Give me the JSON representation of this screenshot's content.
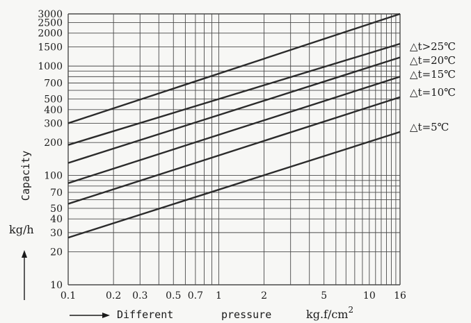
{
  "chart_data": {
    "type": "line",
    "scale": {
      "x": "log",
      "y": "log"
    },
    "xlim": [
      0.1,
      16
    ],
    "ylim": [
      10,
      3000
    ],
    "grid": true,
    "x_ticks": [
      0.1,
      0.2,
      0.3,
      0.5,
      0.7,
      1,
      2,
      5,
      10,
      16
    ],
    "x_tick_labels": [
      "0.1",
      "0.2",
      "0.3",
      "0.5",
      "0.7",
      "1",
      "2",
      "5",
      "10",
      "16"
    ],
    "y_ticks": [
      10,
      20,
      30,
      40,
      50,
      70,
      100,
      200,
      300,
      400,
      500,
      700,
      1000,
      1500,
      2000,
      2500,
      3000
    ],
    "y_tick_labels": [
      "10",
      "20",
      "30",
      "40",
      "50",
      "70",
      "100",
      "200",
      "300",
      "400",
      "500",
      "700",
      "1000",
      "1500",
      "2000",
      "2500",
      "3000"
    ],
    "xlabel": {
      "part1": "Different",
      "part2": "pressure",
      "unit": "kg.f/cm",
      "unit_sup": "2"
    },
    "ylabel": {
      "name": "Capacity",
      "unit": "kg/h"
    },
    "series": [
      {
        "name": "△t>25℃",
        "x": [
          0.1,
          16
        ],
        "y": [
          300,
          3000
        ]
      },
      {
        "name": "△t=20℃",
        "x": [
          0.1,
          16
        ],
        "y": [
          190,
          1600
        ]
      },
      {
        "name": "△t=15℃",
        "x": [
          0.1,
          16
        ],
        "y": [
          130,
          1200
        ]
      },
      {
        "name": "△t=10℃",
        "x": [
          0.1,
          16
        ],
        "y": [
          85,
          800
        ]
      },
      {
        "name": "△t=5℃",
        "x": [
          0.1,
          16
        ],
        "y": [
          55,
          520
        ]
      },
      {
        "name": "",
        "x": [
          0.1,
          16
        ],
        "y": [
          27,
          250
        ]
      }
    ]
  },
  "colors": {
    "line": "#2b2b2b",
    "grid": "#4a4a4a",
    "background": "#f7f7f5"
  }
}
